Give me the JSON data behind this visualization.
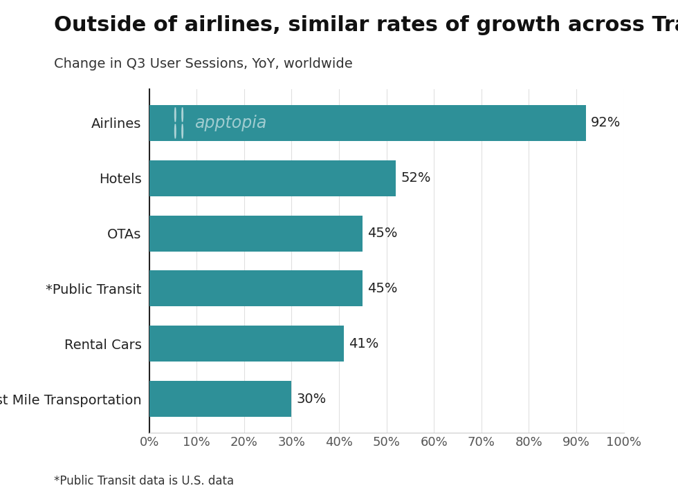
{
  "title": "Outside of airlines, similar rates of growth across Travel",
  "subtitle": "Change in Q3 User Sessions, YoY, worldwide",
  "footnote": "*Public Transit data is U.S. data",
  "categories": [
    "Airlines",
    "Hotels",
    "OTAs",
    "*Public Transit",
    "Rental Cars",
    "Last Mile Transportation"
  ],
  "values": [
    92,
    52,
    45,
    45,
    41,
    30
  ],
  "labels": [
    "92%",
    "52%",
    "45%",
    "45%",
    "41%",
    "30%"
  ],
  "bar_color": "#2e9098",
  "background_color": "#ffffff",
  "title_fontsize": 22,
  "subtitle_fontsize": 14,
  "label_fontsize": 14,
  "tick_fontsize": 13,
  "footnote_fontsize": 12,
  "watermark_text": "apptopia",
  "xlim": [
    0,
    100
  ],
  "xticks": [
    0,
    10,
    20,
    30,
    40,
    50,
    60,
    70,
    80,
    90,
    100
  ],
  "xtick_labels": [
    "0%",
    "10%",
    "20%",
    "30%",
    "40%",
    "50%",
    "60%",
    "70%",
    "80%",
    "90%",
    "100%"
  ]
}
